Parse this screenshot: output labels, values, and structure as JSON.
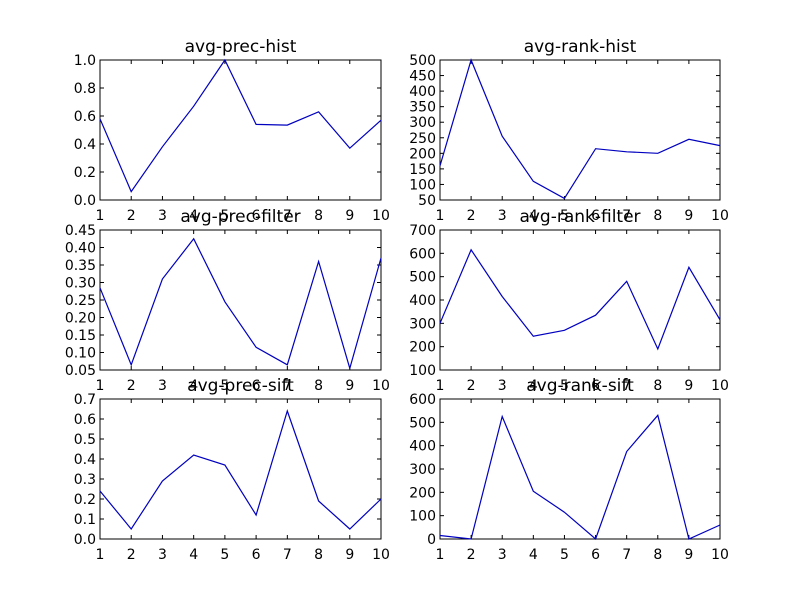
{
  "chart_data": [
    {
      "type": "line",
      "title": "avg-prec-hist",
      "xlabel": "",
      "ylabel": "",
      "x": [
        1,
        2,
        3,
        4,
        5,
        6,
        7,
        8,
        9,
        10
      ],
      "series": [
        {
          "values": [
            0.58,
            0.06,
            0.38,
            0.67,
            1.0,
            0.54,
            0.535,
            0.63,
            0.37,
            0.57
          ]
        }
      ],
      "xlim": [
        1,
        10
      ],
      "ylim": [
        0.0,
        1.0
      ],
      "xticks": [
        "1",
        "2",
        "3",
        "4",
        "5",
        "6",
        "7",
        "8",
        "9",
        "10"
      ],
      "yticks": [
        "0.0",
        "0.2",
        "0.4",
        "0.6",
        "0.8",
        "1.0"
      ],
      "grid": false,
      "color": "#0000bf"
    },
    {
      "type": "line",
      "title": "avg-rank-hist",
      "xlabel": "",
      "ylabel": "",
      "x": [
        1,
        2,
        3,
        4,
        5,
        6,
        7,
        8,
        9,
        10
      ],
      "series": [
        {
          "values": [
            160,
            500,
            255,
            110,
            55,
            215,
            205,
            200,
            245,
            225
          ]
        }
      ],
      "xlim": [
        1,
        10
      ],
      "ylim": [
        50,
        500
      ],
      "xticks": [
        "1",
        "2",
        "3",
        "4",
        "5",
        "6",
        "7",
        "8",
        "9",
        "10"
      ],
      "yticks": [
        "50",
        "100",
        "150",
        "200",
        "250",
        "300",
        "350",
        "400",
        "450",
        "500"
      ],
      "grid": false,
      "color": "#0000bf"
    },
    {
      "type": "line",
      "title": "avg-prec-filter",
      "xlabel": "",
      "ylabel": "",
      "x": [
        1,
        2,
        3,
        4,
        5,
        6,
        7,
        8,
        9,
        10
      ],
      "series": [
        {
          "values": [
            0.285,
            0.065,
            0.31,
            0.425,
            0.245,
            0.115,
            0.065,
            0.36,
            0.055,
            0.37
          ]
        }
      ],
      "xlim": [
        1,
        10
      ],
      "ylim": [
        0.05,
        0.45
      ],
      "xticks": [
        "1",
        "2",
        "3",
        "4",
        "5",
        "6",
        "7",
        "8",
        "9",
        "10"
      ],
      "yticks": [
        "0.05",
        "0.10",
        "0.15",
        "0.20",
        "0.25",
        "0.30",
        "0.35",
        "0.40",
        "0.45"
      ],
      "grid": false,
      "color": "#0000bf"
    },
    {
      "type": "line",
      "title": "avg-rank-filter",
      "xlabel": "",
      "ylabel": "",
      "x": [
        1,
        2,
        3,
        4,
        5,
        6,
        7,
        8,
        9,
        10
      ],
      "series": [
        {
          "values": [
            300,
            615,
            415,
            245,
            270,
            335,
            480,
            190,
            540,
            315
          ]
        }
      ],
      "xlim": [
        1,
        10
      ],
      "ylim": [
        100,
        700
      ],
      "xticks": [
        "1",
        "2",
        "3",
        "4",
        "5",
        "6",
        "7",
        "8",
        "9",
        "10"
      ],
      "yticks": [
        "100",
        "200",
        "300",
        "400",
        "500",
        "600",
        "700"
      ],
      "grid": false,
      "color": "#0000bf"
    },
    {
      "type": "line",
      "title": "avg-prec-sift",
      "xlabel": "",
      "ylabel": "",
      "x": [
        1,
        2,
        3,
        4,
        5,
        6,
        7,
        8,
        9,
        10
      ],
      "series": [
        {
          "values": [
            0.24,
            0.05,
            0.29,
            0.42,
            0.37,
            0.12,
            0.64,
            0.19,
            0.05,
            0.2
          ]
        }
      ],
      "xlim": [
        1,
        10
      ],
      "ylim": [
        0.0,
        0.7
      ],
      "xticks": [
        "1",
        "2",
        "3",
        "4",
        "5",
        "6",
        "7",
        "8",
        "9",
        "10"
      ],
      "yticks": [
        "0.0",
        "0.1",
        "0.2",
        "0.3",
        "0.4",
        "0.5",
        "0.6",
        "0.7"
      ],
      "grid": false,
      "color": "#0000bf"
    },
    {
      "type": "line",
      "title": "avg-rank-sift",
      "xlabel": "",
      "ylabel": "",
      "x": [
        1,
        2,
        3,
        4,
        5,
        6,
        7,
        8,
        9,
        10
      ],
      "series": [
        {
          "values": [
            15,
            0,
            525,
            205,
            115,
            0,
            375,
            530,
            0,
            60
          ]
        }
      ],
      "xlim": [
        1,
        10
      ],
      "ylim": [
        0,
        600
      ],
      "xticks": [
        "1",
        "2",
        "3",
        "4",
        "5",
        "6",
        "7",
        "8",
        "9",
        "10"
      ],
      "yticks": [
        "0",
        "100",
        "200",
        "300",
        "400",
        "500",
        "600"
      ],
      "grid": false,
      "color": "#0000bf"
    }
  ]
}
